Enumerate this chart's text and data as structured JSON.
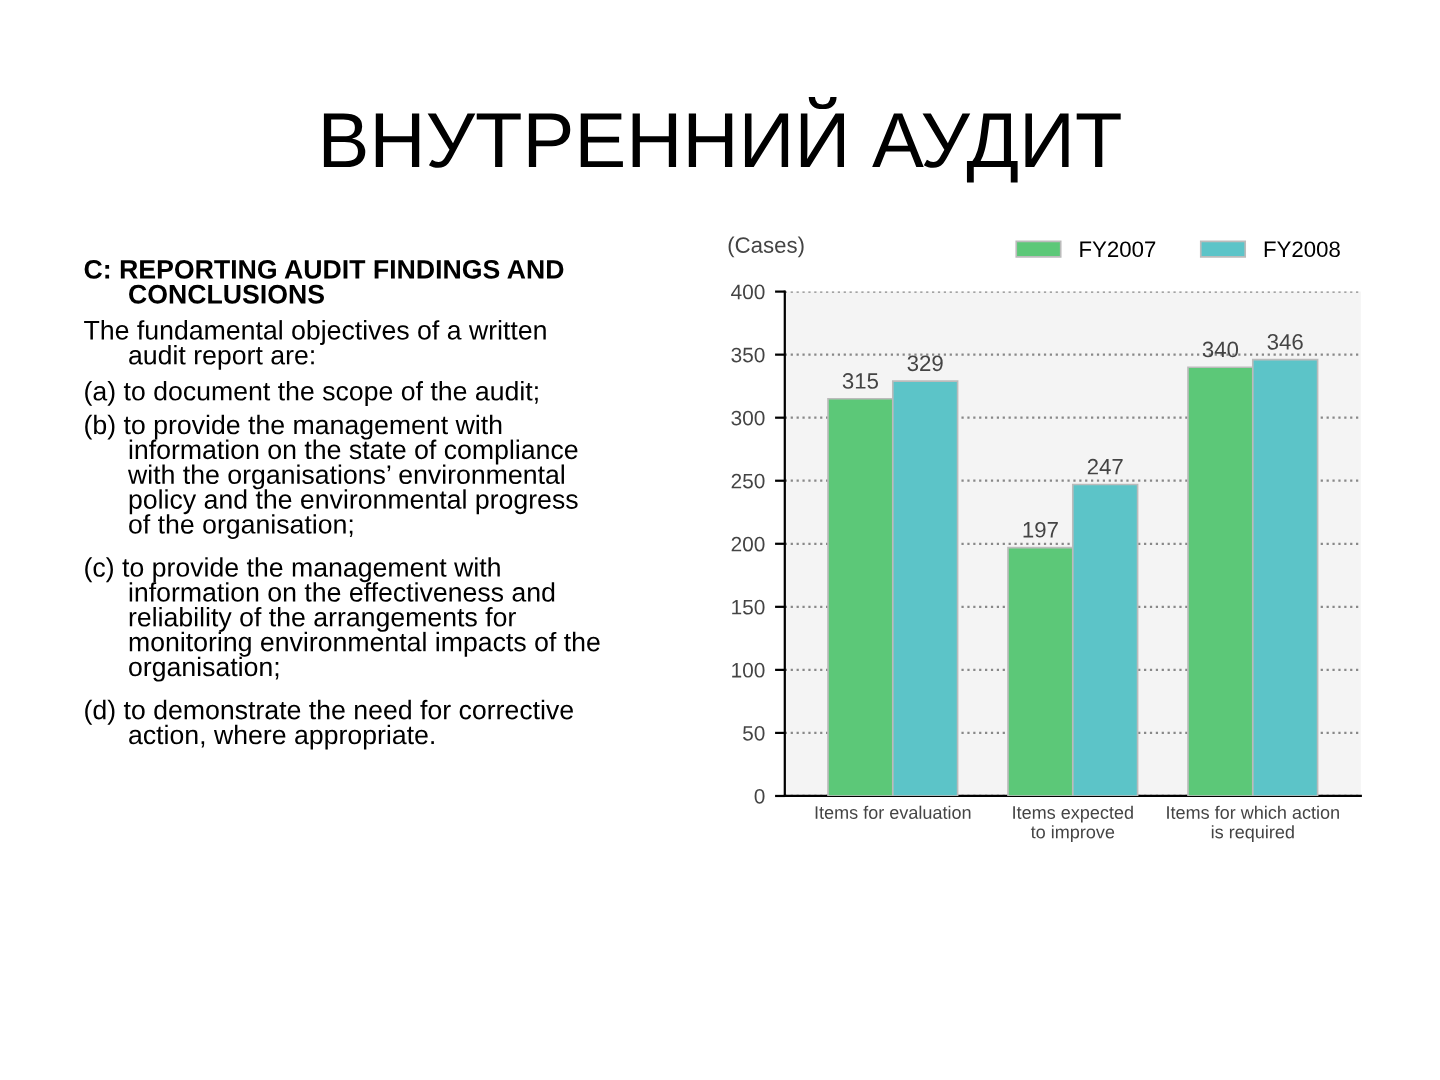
{
  "chart_data": {
    "type": "bar",
    "title": "ВНУТРЕННИЙ АУДИТ",
    "ylabel": "(Cases)",
    "categories": [
      "Items for evaluation",
      "Items expected\nto improve",
      "Items for which action\nis required"
    ],
    "series": [
      {
        "name": "FY2007",
        "color": "#5cc878",
        "values": [
          315,
          197,
          340
        ]
      },
      {
        "name": "FY2008",
        "color": "#5cc4c8",
        "values": [
          329,
          247,
          346
        ]
      }
    ],
    "ylim": [
      0,
      400
    ],
    "yticks": [
      0,
      50,
      100,
      150,
      200,
      250,
      300,
      350,
      400
    ],
    "grid": "y",
    "legend": "top right",
    "data_labels": true,
    "annotations": [
      "C: REPORTING AUDIT FINDINGS AND\n      CONCLUSIONS",
      "The fundamental objectives of a written\n      audit report are:",
      "(a) to document the scope of the audit;",
      "(b) to provide the management with\n      information on the state of compliance\n      with the organisations’ environmental\n      policy and the environmental progress\n      of the organisation;",
      "(c) to provide the management with\n      information on the effectiveness and\n      reliability of the arrangements for\n      monitoring environmental impacts of the\n      organisation;",
      "(d) to demonstrate the need for corrective\n      action, where appropriate."
    ]
  }
}
